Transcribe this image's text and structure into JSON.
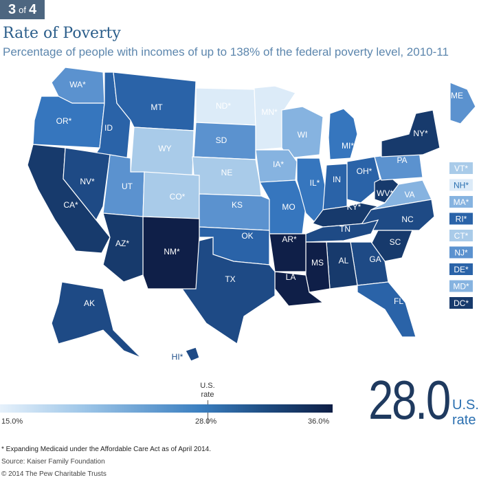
{
  "badge": {
    "current": "3",
    "of": "of",
    "total": "4"
  },
  "title": "Rate of Poverty",
  "subtitle": "Percentage of people with incomes of up to 138% of the federal poverty level, 2010-11",
  "legend": {
    "us_rate_label": "U.S. rate",
    "min_label": "15.0%",
    "mid_label": "28.0%",
    "max_label": "36.0%",
    "colors": [
      "#e6f1fb",
      "#9ec6e8",
      "#3b7fc0",
      "#1d4b80",
      "#0e1e45"
    ]
  },
  "big_rate": {
    "value": "28.0",
    "label": "U.S. rate"
  },
  "footnote": "* Expanding Medicaid under the Affordable Care Act as of April 2014.",
  "source": "Source: Kaiser Family Foundation",
  "copyright": "© 2014 The Pew Charitable Trusts",
  "colors": {
    "lightest": "#dcebf8",
    "light": "#a9cbe9",
    "light_mid": "#86b3e0",
    "mid": "#5b92cf",
    "blue": "#3676be",
    "mid_dark": "#2a63a8",
    "dark": "#1e4a85",
    "darker": "#173a6c",
    "darkest": "#0f1f48"
  },
  "states": [
    {
      "abbr": "WA*",
      "tone": "mid"
    },
    {
      "abbr": "OR*",
      "tone": "blue"
    },
    {
      "abbr": "ID",
      "tone": "mid_dark"
    },
    {
      "abbr": "MT",
      "tone": "mid_dark"
    },
    {
      "abbr": "WY",
      "tone": "light"
    },
    {
      "abbr": "ND*",
      "tone": "lightest"
    },
    {
      "abbr": "SD",
      "tone": "mid"
    },
    {
      "abbr": "MN*",
      "tone": "lightest"
    },
    {
      "abbr": "WI",
      "tone": "light_mid"
    },
    {
      "abbr": "MI*",
      "tone": "blue"
    },
    {
      "abbr": "IA*",
      "tone": "light_mid"
    },
    {
      "abbr": "NE",
      "tone": "light"
    },
    {
      "abbr": "CA*",
      "tone": "darker"
    },
    {
      "abbr": "NV*",
      "tone": "dark"
    },
    {
      "abbr": "UT",
      "tone": "mid"
    },
    {
      "abbr": "CO*",
      "tone": "light"
    },
    {
      "abbr": "KS",
      "tone": "mid"
    },
    {
      "abbr": "MO",
      "tone": "blue"
    },
    {
      "abbr": "IL*",
      "tone": "blue"
    },
    {
      "abbr": "IN",
      "tone": "mid_dark"
    },
    {
      "abbr": "OH*",
      "tone": "mid_dark"
    },
    {
      "abbr": "KY*",
      "tone": "darker"
    },
    {
      "abbr": "WV*",
      "tone": "darker"
    },
    {
      "abbr": "PA",
      "tone": "mid"
    },
    {
      "abbr": "NY*",
      "tone": "darker"
    },
    {
      "abbr": "ME",
      "tone": "mid"
    },
    {
      "abbr": "VA",
      "tone": "light_mid"
    },
    {
      "abbr": "NC",
      "tone": "dark"
    },
    {
      "abbr": "TN",
      "tone": "dark"
    },
    {
      "abbr": "SC",
      "tone": "darker"
    },
    {
      "abbr": "GA",
      "tone": "dark"
    },
    {
      "abbr": "AL",
      "tone": "darker"
    },
    {
      "abbr": "MS",
      "tone": "darkest"
    },
    {
      "abbr": "LA",
      "tone": "darkest"
    },
    {
      "abbr": "AR*",
      "tone": "darkest"
    },
    {
      "abbr": "OK",
      "tone": "mid_dark"
    },
    {
      "abbr": "TX",
      "tone": "dark"
    },
    {
      "abbr": "NM*",
      "tone": "darkest"
    },
    {
      "abbr": "AZ*",
      "tone": "darker"
    },
    {
      "abbr": "FL",
      "tone": "mid_dark"
    },
    {
      "abbr": "AK",
      "tone": "dark"
    },
    {
      "abbr": "HI*",
      "tone": "dark"
    }
  ],
  "small_states": [
    {
      "abbr": "VT*",
      "tone": "light"
    },
    {
      "abbr": "NH*",
      "tone": "lightest"
    },
    {
      "abbr": "MA*",
      "tone": "light_mid"
    },
    {
      "abbr": "RI*",
      "tone": "mid_dark"
    },
    {
      "abbr": "CT*",
      "tone": "light"
    },
    {
      "abbr": "NJ*",
      "tone": "mid"
    },
    {
      "abbr": "DE*",
      "tone": "mid_dark"
    },
    {
      "abbr": "MD*",
      "tone": "light_mid"
    },
    {
      "abbr": "DC*",
      "tone": "darker"
    }
  ]
}
